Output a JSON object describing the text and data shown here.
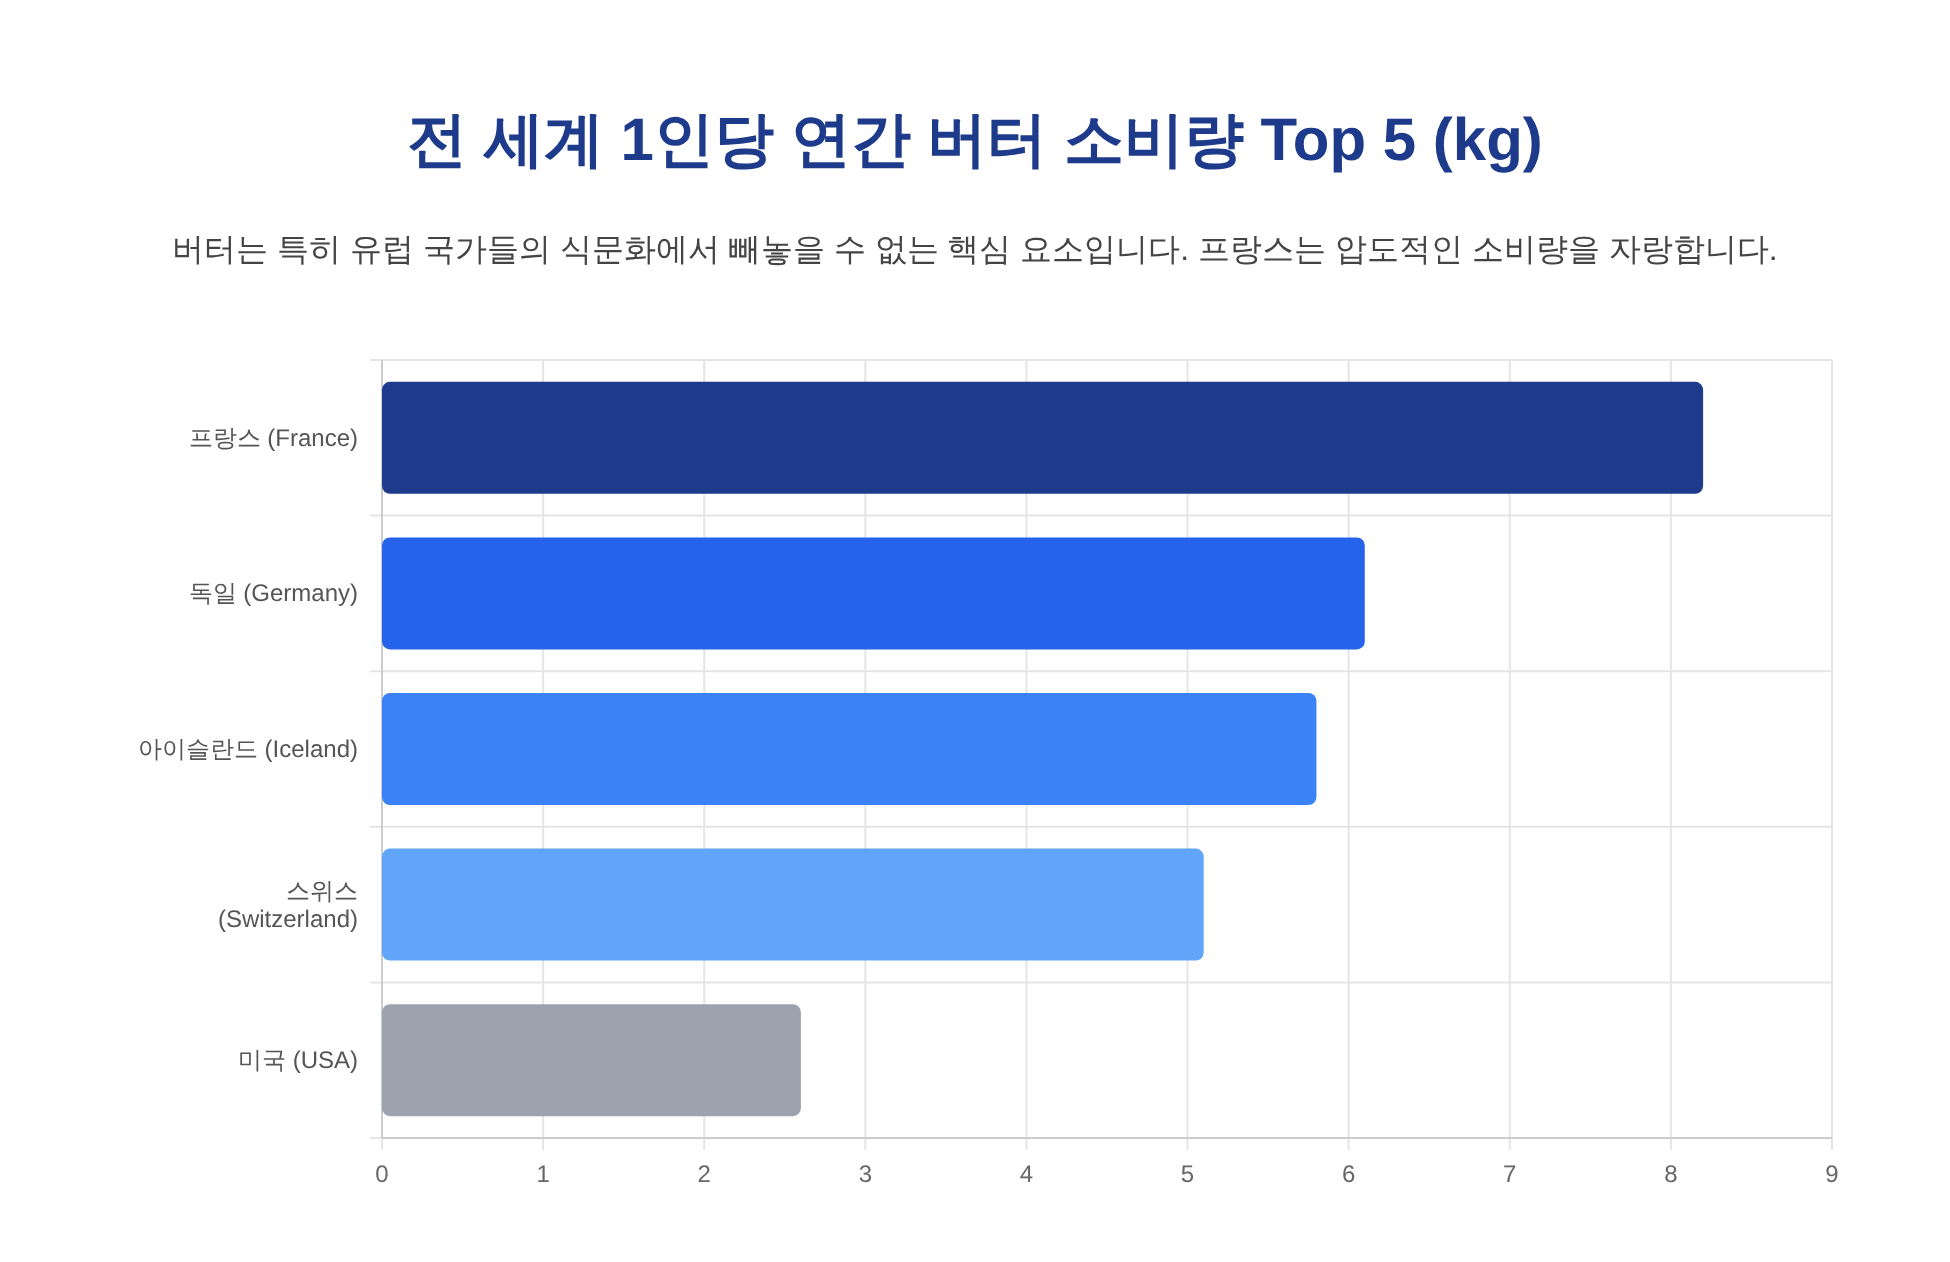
{
  "chart_data": {
    "type": "bar",
    "orientation": "horizontal",
    "title": "전 세계 1인당 연간 버터 소비량 Top 5 (kg)",
    "subtitle": "버터는 특히 유럽 국가들의 식문화에서 빼놓을 수 없는 핵심 요소입니다. 프랑스는 압도적인 소비량을 자랑합니다.",
    "categories": [
      "프랑스 (France)",
      "독일 (Germany)",
      "아이슬란드 (Iceland)",
      "스위스 (Switzerland)",
      "미국 (USA)"
    ],
    "values": [
      8.2,
      6.1,
      5.8,
      5.1,
      2.6
    ],
    "colors": [
      "#1e3a8a",
      "#2563eb",
      "#3b82f6",
      "#60a5fa",
      "#9ca3af"
    ],
    "xlim": [
      0,
      9
    ],
    "xticks": [
      0,
      1,
      2,
      3,
      4,
      5,
      6,
      7,
      8,
      9
    ],
    "grid": true
  }
}
